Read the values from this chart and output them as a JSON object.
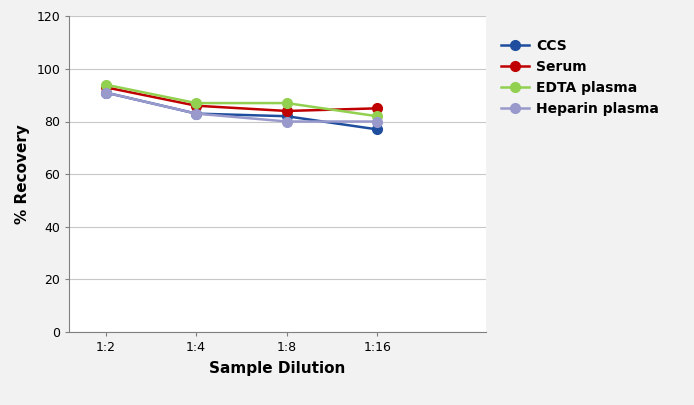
{
  "x_labels": [
    "1:2",
    "1:4",
    "1:8",
    "1:16"
  ],
  "x_positions": [
    0,
    1,
    2,
    3
  ],
  "series": [
    {
      "label": "CCS",
      "color": "#1f4e9e",
      "marker": "o",
      "values": [
        91,
        83,
        82,
        77
      ]
    },
    {
      "label": "Serum",
      "color": "#c00000",
      "marker": "o",
      "values": [
        93,
        86,
        84,
        85
      ]
    },
    {
      "label": "EDTA plasma",
      "color": "#92d050",
      "marker": "o",
      "values": [
        94,
        87,
        87,
        82
      ]
    },
    {
      "label": "Heparin plasma",
      "color": "#9999cc",
      "marker": "o",
      "values": [
        91,
        83,
        80,
        80
      ]
    }
  ],
  "ylabel": "% Recovery",
  "xlabel": "Sample Dilution",
  "ylim": [
    0,
    120
  ],
  "yticks": [
    0,
    20,
    40,
    60,
    80,
    100,
    120
  ],
  "xlim": [
    -0.4,
    4.2
  ],
  "background_color": "#f2f2f2",
  "plot_bg_color": "#ffffff",
  "grid_color": "#c8c8c8",
  "spine_color": "#808080",
  "linewidth": 1.8,
  "markersize": 7,
  "tick_fontsize": 9,
  "label_fontsize": 11,
  "legend_fontsize": 10
}
